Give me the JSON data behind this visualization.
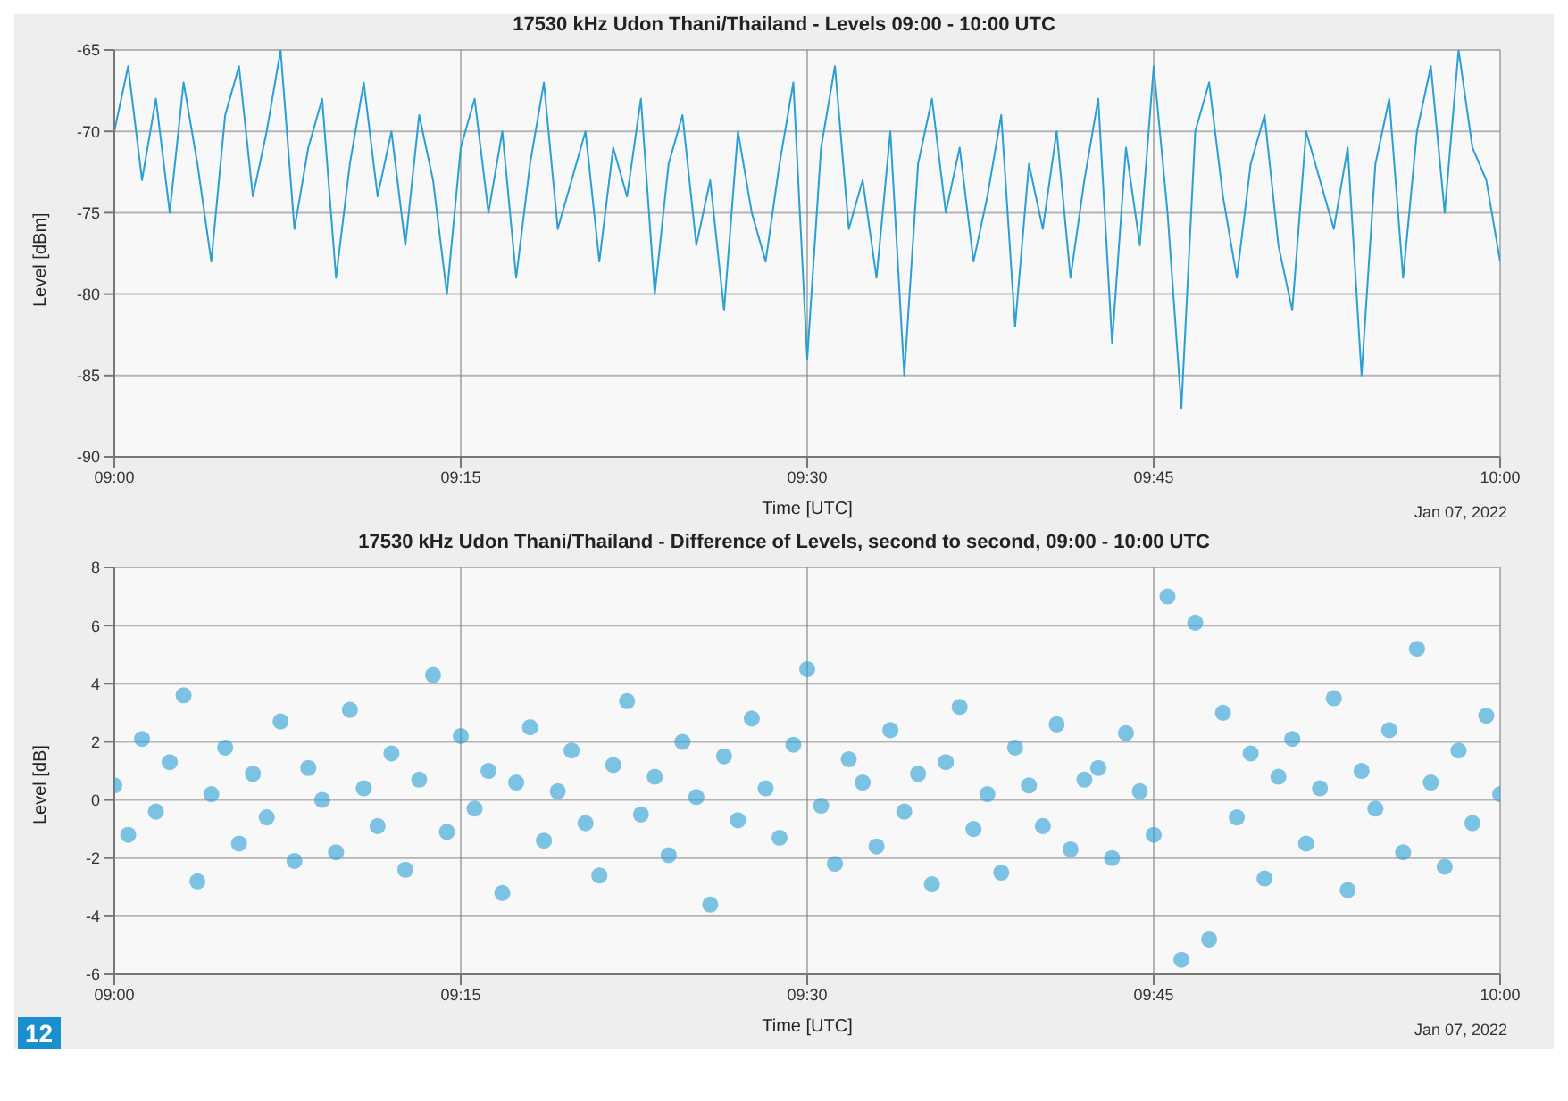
{
  "chart_data": [
    {
      "type": "line",
      "title": "17530 kHz Udon Thani/Thailand - Levels 09:00 - 10:00 UTC",
      "xlabel": "Time [UTC]",
      "ylabel": "Level [dBm]",
      "annotations": [
        "Jan 07, 2022"
      ],
      "grid": true,
      "marker": "none",
      "line_style": "solid",
      "xlim": [
        9,
        10
      ],
      "xticks": [
        {
          "value": 9,
          "label": "09:00"
        },
        {
          "value": 9.25,
          "label": "09:15"
        },
        {
          "value": 9.5,
          "label": "09:30"
        },
        {
          "value": 9.75,
          "label": "09:45"
        },
        {
          "value": 10,
          "label": "10:00"
        }
      ],
      "ylim": [
        -90,
        -65
      ],
      "yticks": [
        -90,
        -85,
        -80,
        -75,
        -70,
        -65
      ],
      "x": [
        9,
        9.01,
        9.02,
        9.03,
        9.04,
        9.05,
        9.06,
        9.07,
        9.08,
        9.09,
        9.1,
        9.11,
        9.12,
        9.13,
        9.14,
        9.15,
        9.16,
        9.17,
        9.18,
        9.19,
        9.2,
        9.21,
        9.22,
        9.23,
        9.24,
        9.25,
        9.26,
        9.27,
        9.28,
        9.29,
        9.3,
        9.31,
        9.32,
        9.33,
        9.34,
        9.35,
        9.36,
        9.37,
        9.38,
        9.39,
        9.4,
        9.41,
        9.42,
        9.43,
        9.44,
        9.45,
        9.46,
        9.47,
        9.48,
        9.49,
        9.5,
        9.51,
        9.52,
        9.53,
        9.54,
        9.55,
        9.56,
        9.57,
        9.58,
        9.59,
        9.6,
        9.61,
        9.62,
        9.63,
        9.64,
        9.65,
        9.66,
        9.67,
        9.68,
        9.69,
        9.7,
        9.71,
        9.72,
        9.73,
        9.74,
        9.75,
        9.76,
        9.77,
        9.78,
        9.79,
        9.8,
        9.81,
        9.82,
        9.83,
        9.84,
        9.85,
        9.86,
        9.87,
        9.88,
        9.89,
        9.9,
        9.91,
        9.92,
        9.93,
        9.94,
        9.95,
        9.96,
        9.97,
        9.98,
        9.99,
        10
      ],
      "series": [
        {
          "color": "#2a9fd6",
          "values": [
            -70,
            -66,
            -73,
            -68,
            -75,
            -67,
            -72,
            -78,
            -69,
            -66,
            -74,
            -70,
            -65,
            -76,
            -71,
            -68,
            -79,
            -72,
            -67,
            -74,
            -70,
            -77,
            -69,
            -73,
            -80,
            -71,
            -68,
            -75,
            -70,
            -79,
            -72,
            -67,
            -76,
            -73,
            -70,
            -78,
            -71,
            -74,
            -68,
            -80,
            -72,
            -69,
            -77,
            -73,
            -81,
            -70,
            -75,
            -78,
            -72,
            -67,
            -84,
            -71,
            -66,
            -76,
            -73,
            -79,
            -70,
            -85,
            -72,
            -68,
            -75,
            -71,
            -78,
            -74,
            -69,
            -82,
            -72,
            -76,
            -70,
            -79,
            -73,
            -68,
            -83,
            -71,
            -77,
            -66,
            -75,
            -87,
            -70,
            -67,
            -74,
            -79,
            -72,
            -69,
            -77,
            -81,
            -70,
            -73,
            -76,
            -71,
            -85,
            -72,
            -68,
            -79,
            -70,
            -66,
            -75,
            -65,
            -71,
            -73,
            -78
          ]
        }
      ]
    },
    {
      "type": "scatter",
      "title": "17530 kHz Udon Thani/Thailand - Difference of Levels, second to second, 09:00 - 10:00 UTC",
      "xlabel": "Time [UTC]",
      "ylabel": "Level [dB]",
      "annotations": [
        "Jan 07, 2022",
        "12"
      ],
      "grid": true,
      "marker": "circle",
      "xlim": [
        9,
        10
      ],
      "xticks": [
        {
          "value": 9,
          "label": "09:00"
        },
        {
          "value": 9.25,
          "label": "09:15"
        },
        {
          "value": 9.5,
          "label": "09:30"
        },
        {
          "value": 9.75,
          "label": "09:45"
        },
        {
          "value": 10,
          "label": "10:00"
        }
      ],
      "ylim": [
        -6,
        8
      ],
      "yticks": [
        -6,
        -4,
        -2,
        0,
        2,
        4,
        6,
        8
      ],
      "x": [
        9,
        9.01,
        9.02,
        9.03,
        9.04,
        9.05,
        9.06,
        9.07,
        9.08,
        9.09,
        9.1,
        9.11,
        9.12,
        9.13,
        9.14,
        9.15,
        9.16,
        9.17,
        9.18,
        9.19,
        9.2,
        9.21,
        9.22,
        9.23,
        9.24,
        9.25,
        9.26,
        9.27,
        9.28,
        9.29,
        9.3,
        9.31,
        9.32,
        9.33,
        9.34,
        9.35,
        9.36,
        9.37,
        9.38,
        9.39,
        9.4,
        9.41,
        9.42,
        9.43,
        9.44,
        9.45,
        9.46,
        9.47,
        9.48,
        9.49,
        9.5,
        9.51,
        9.52,
        9.53,
        9.54,
        9.55,
        9.56,
        9.57,
        9.58,
        9.59,
        9.6,
        9.61,
        9.62,
        9.63,
        9.64,
        9.65,
        9.66,
        9.67,
        9.68,
        9.69,
        9.7,
        9.71,
        9.72,
        9.73,
        9.74,
        9.75,
        9.76,
        9.77,
        9.78,
        9.79,
        9.8,
        9.81,
        9.82,
        9.83,
        9.84,
        9.85,
        9.86,
        9.87,
        9.88,
        9.89,
        9.9,
        9.91,
        9.92,
        9.93,
        9.94,
        9.95,
        9.96,
        9.97,
        9.98,
        9.99,
        10
      ],
      "series": [
        {
          "color": "#2a9fd6",
          "values": [
            0.5,
            -1.2,
            2.1,
            -0.4,
            1.3,
            3.6,
            -2.8,
            0.2,
            1.8,
            -1.5,
            0.9,
            -0.6,
            2.7,
            -2.1,
            1.1,
            0.0,
            -1.8,
            3.1,
            0.4,
            -0.9,
            1.6,
            -2.4,
            0.7,
            4.3,
            -1.1,
            2.2,
            -0.3,
            1.0,
            -3.2,
            0.6,
            2.5,
            -1.4,
            0.3,
            1.7,
            -0.8,
            -2.6,
            1.2,
            3.4,
            -0.5,
            0.8,
            -1.9,
            2.0,
            0.1,
            -3.6,
            1.5,
            -0.7,
            2.8,
            0.4,
            -1.3,
            1.9,
            4.5,
            -0.2,
            -2.2,
            1.4,
            0.6,
            -1.6,
            2.4,
            -0.4,
            0.9,
            -2.9,
            1.3,
            3.2,
            -1.0,
            0.2,
            -2.5,
            1.8,
            0.5,
            -0.9,
            2.6,
            -1.7,
            0.7,
            1.1,
            -2.0,
            2.3,
            0.3,
            -1.2,
            7.0,
            -5.5,
            6.1,
            -4.8,
            3.0,
            -0.6,
            1.6,
            -2.7,
            0.8,
            2.1,
            -1.5,
            0.4,
            3.5,
            -3.1,
            1.0,
            -0.3,
            2.4,
            -1.8,
            5.2,
            0.6,
            -2.3,
            1.7,
            -0.8,
            2.9,
            0.2
          ]
        }
      ]
    }
  ]
}
